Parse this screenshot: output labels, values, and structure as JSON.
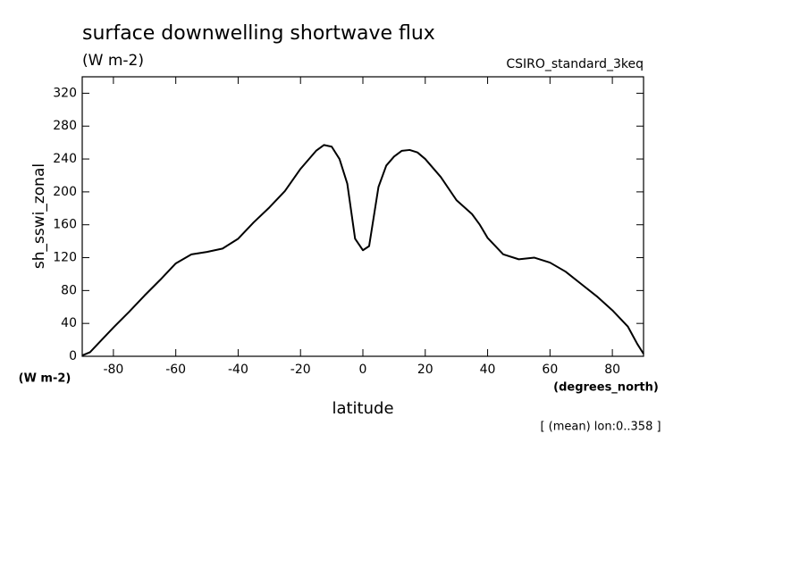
{
  "chart_data": {
    "type": "line",
    "title": "surface downwelling shortwave flux",
    "subtitle": "(W m-2)",
    "dataset": "CSIRO_standard_3keq",
    "x_label": "latitude",
    "x_units": "(degrees_north)",
    "y_label": "sh_sswi_zonal",
    "y_units": "(W m-2)",
    "note": "[ (mean) lon:0..358 ]",
    "x": [
      -90,
      -87.5,
      -85,
      -80,
      -75,
      -70,
      -65,
      -60,
      -55,
      -50,
      -45,
      -40,
      -35,
      -30,
      -25,
      -20,
      -15,
      -12.5,
      -10,
      -7.5,
      -5,
      -2.5,
      0,
      2,
      5,
      7.5,
      10,
      12.5,
      15,
      17.5,
      20,
      25,
      30,
      35,
      37.5,
      40,
      45,
      50,
      55,
      60,
      65,
      70,
      75,
      80,
      85,
      88,
      90
    ],
    "series": [
      {
        "name": "sh_sswi_zonal",
        "color": "#000000",
        "values": [
          1,
          5,
          15,
          35,
          54,
          74,
          93,
          113,
          124,
          127,
          131,
          143,
          163,
          181,
          201,
          228,
          250,
          257,
          255,
          240,
          210,
          143,
          129,
          134,
          206,
          232,
          243,
          250,
          251,
          248,
          240,
          218,
          190,
          173,
          160,
          144,
          124,
          118,
          120,
          114,
          103,
          88,
          73,
          56,
          36,
          15,
          3
        ]
      }
    ],
    "xlim": [
      -90,
      90
    ],
    "ylim": [
      0,
      340
    ],
    "xticks": [
      -80,
      -60,
      -40,
      -20,
      0,
      20,
      40,
      60,
      80
    ],
    "yticks": [
      0,
      40,
      80,
      120,
      160,
      200,
      240,
      280,
      320
    ],
    "grid": false
  }
}
